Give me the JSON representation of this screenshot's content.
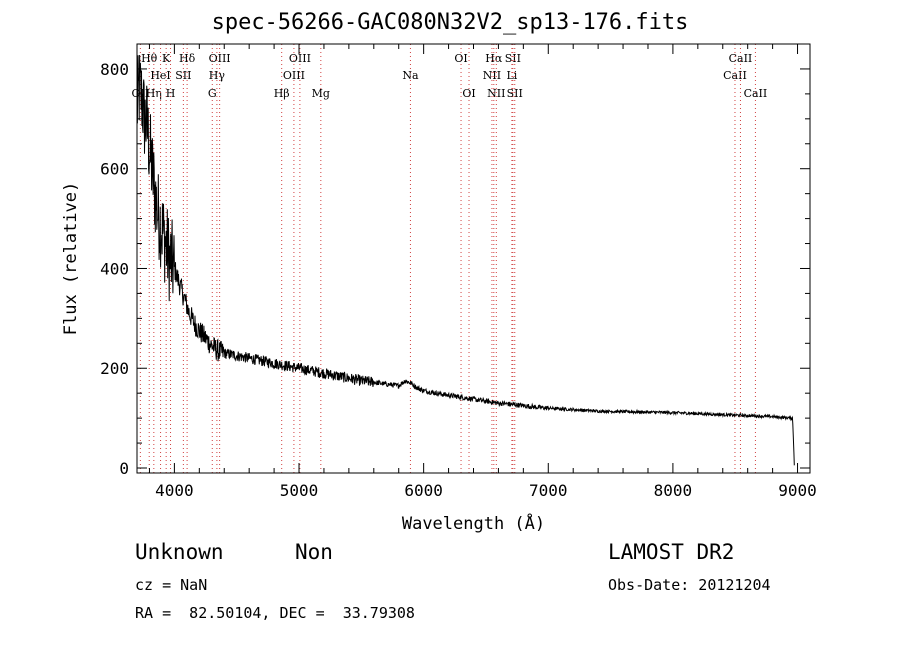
{
  "title": "spec-56266-GAC080N32V2_sp13-176.fits",
  "info": {
    "class": "Unknown",
    "subclass": "Non",
    "survey": "LAMOST DR2",
    "cz": "cz = NaN",
    "obs_date": "Obs-Date: 20121204",
    "radec": "RA =  82.50104, DEC =  33.79308"
  },
  "chart_data": {
    "type": "line",
    "title": "spec-56266-GAC080N32V2_sp13-176.fits",
    "xlabel": "Wavelength (Å)",
    "ylabel": "Flux (relative)",
    "xlim": [
      3700,
      9100
    ],
    "ylim": [
      -10,
      850
    ],
    "xticks": [
      4000,
      5000,
      6000,
      7000,
      8000,
      9000
    ],
    "yticks": [
      0,
      200,
      400,
      600,
      800
    ],
    "grid": false,
    "series": [
      {
        "x": [
          3700,
          3720,
          3740,
          3760,
          3780,
          3800,
          3820,
          3840,
          3860,
          3880,
          3900,
          3930,
          3960,
          4000,
          4040,
          4080,
          4120,
          4160,
          4200,
          4250,
          4300,
          4350,
          4400,
          4450,
          4500,
          4600,
          4700,
          4800,
          4900,
          5000,
          5100,
          5200,
          5300,
          5400,
          5500,
          5600,
          5700,
          5800,
          5850,
          5900,
          5950,
          6000,
          6100,
          6200,
          6300,
          6400,
          6500,
          6600,
          6700,
          6800,
          6900,
          7000,
          7200,
          7400,
          7600,
          7800,
          8000,
          8200,
          8400,
          8600,
          8800,
          8960,
          8970,
          8975
        ],
        "y": [
          720,
          760,
          740,
          700,
          690,
          640,
          600,
          560,
          520,
          500,
          480,
          450,
          420,
          400,
          370,
          340,
          310,
          290,
          275,
          260,
          245,
          235,
          230,
          228,
          225,
          220,
          215,
          210,
          205,
          200,
          195,
          190,
          185,
          180,
          175,
          172,
          168,
          165,
          175,
          170,
          160,
          155,
          150,
          146,
          142,
          138,
          134,
          130,
          128,
          125,
          122,
          120,
          117,
          114,
          113,
          112,
          111,
          109,
          107,
          105,
          103,
          100,
          40,
          0
        ]
      }
    ],
    "lines": [
      {
        "name": "OII",
        "x": 3727,
        "row": 2
      },
      {
        "name": "Hθ",
        "x": 3798,
        "row": 0
      },
      {
        "name": "Hη",
        "x": 3835,
        "row": 2
      },
      {
        "name": "HeI",
        "x": 3889,
        "row": 1
      },
      {
        "name": "K",
        "x": 3934,
        "row": 0
      },
      {
        "name": "H",
        "x": 3969,
        "row": 2
      },
      {
        "name": "SII",
        "x": 4072,
        "row": 1
      },
      {
        "name": "Hδ",
        "x": 4102,
        "row": 0
      },
      {
        "name": "G",
        "x": 4304,
        "row": 2
      },
      {
        "name": "Hγ",
        "x": 4341,
        "row": 1
      },
      {
        "name": "OIII",
        "x": 4363,
        "row": 0
      },
      {
        "name": "Hβ",
        "x": 4861,
        "row": 2
      },
      {
        "name": "OIII",
        "x": 4959,
        "row": 1
      },
      {
        "name": "OIII",
        "x": 5007,
        "row": 0
      },
      {
        "name": "Mg",
        "x": 5175,
        "row": 2
      },
      {
        "name": "Na",
        "x": 5894,
        "row": 1
      },
      {
        "name": "OI",
        "x": 6300,
        "row": 0
      },
      {
        "name": "OI",
        "x": 6364,
        "row": 2
      },
      {
        "name": "NII",
        "x": 6548,
        "row": 1
      },
      {
        "name": "Hα",
        "x": 6563,
        "row": 0
      },
      {
        "name": "NII",
        "x": 6583,
        "row": 2
      },
      {
        "name": "Li",
        "x": 6708,
        "row": 1
      },
      {
        "name": "SII",
        "x": 6716,
        "row": 0
      },
      {
        "name": "SII",
        "x": 6731,
        "row": 2
      },
      {
        "name": "CaII",
        "x": 8498,
        "row": 1
      },
      {
        "name": "CaII",
        "x": 8542,
        "row": 0
      },
      {
        "name": "CaII",
        "x": 8662,
        "row": 2
      }
    ]
  }
}
